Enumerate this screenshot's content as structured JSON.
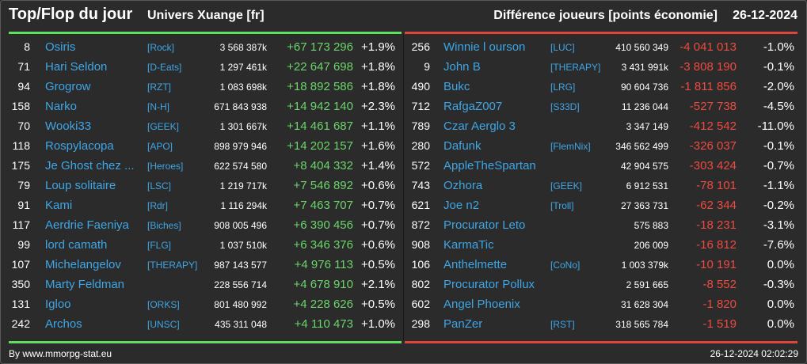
{
  "header": {
    "title": "Top/Flop du jour",
    "universe": "Univers Xuange [fr]",
    "metric": "Différence joueurs [points économie]",
    "date": "26-12-2024"
  },
  "colors": {
    "positive": "#6bd46b",
    "negative": "#ee4a40",
    "name": "#3ea6e6",
    "top_bar": "#5ee05e",
    "flop_bar": "#e0453c"
  },
  "top": [
    {
      "rank": "8",
      "name": "Osiris",
      "tag": "[Rock]",
      "score": "3 568 387k",
      "diff": "+67 173 296",
      "pct": "+1.9%"
    },
    {
      "rank": "71",
      "name": "Hari Seldon",
      "tag": "[D-Eats]",
      "score": "1 297 461k",
      "diff": "+22 647 698",
      "pct": "+1.8%"
    },
    {
      "rank": "94",
      "name": "Grogrow",
      "tag": "[RZT]",
      "score": "1 083 698k",
      "diff": "+18 892 586",
      "pct": "+1.8%"
    },
    {
      "rank": "158",
      "name": "Narko",
      "tag": "[N-H]",
      "score": "671 843 938",
      "diff": "+14 942 140",
      "pct": "+2.3%"
    },
    {
      "rank": "70",
      "name": "Wooki33",
      "tag": "[GEEK]",
      "score": "1 301 667k",
      "diff": "+14 461 687",
      "pct": "+1.1%"
    },
    {
      "rank": "118",
      "name": "Rospylacopa",
      "tag": "[APO]",
      "score": "898 979 946",
      "diff": "+14 202 157",
      "pct": "+1.6%"
    },
    {
      "rank": "175",
      "name": "Je Ghost chez ...",
      "tag": "[Heroes]",
      "score": "622 574 580",
      "diff": "+8 404 332",
      "pct": "+1.4%"
    },
    {
      "rank": "79",
      "name": "Loup solitaire",
      "tag": "[LSC]",
      "score": "1 219 717k",
      "diff": "+7 546 892",
      "pct": "+0.6%"
    },
    {
      "rank": "91",
      "name": "Kami",
      "tag": "[Rdr]",
      "score": "1 116 294k",
      "diff": "+7 463 707",
      "pct": "+0.7%"
    },
    {
      "rank": "117",
      "name": "Aerdrie Faeniya",
      "tag": "[Biches]",
      "score": "908 005 496",
      "diff": "+6 390 456",
      "pct": "+0.7%"
    },
    {
      "rank": "99",
      "name": "lord camath",
      "tag": "[FLG]",
      "score": "1 037 510k",
      "diff": "+6 346 376",
      "pct": "+0.6%"
    },
    {
      "rank": "107",
      "name": "Michelangelov",
      "tag": "[THERAPY]",
      "score": "987 143 577",
      "diff": "+4 976 113",
      "pct": "+0.5%"
    },
    {
      "rank": "350",
      "name": "Marty Feldman",
      "tag": "",
      "score": "228 556 714",
      "diff": "+4 678 910",
      "pct": "+2.1%"
    },
    {
      "rank": "131",
      "name": "Igloo",
      "tag": "[ORKS]",
      "score": "801 480 992",
      "diff": "+4 228 626",
      "pct": "+0.5%"
    },
    {
      "rank": "242",
      "name": "Archos",
      "tag": "[UNSC]",
      "score": "435 311 048",
      "diff": "+4 110 473",
      "pct": "+1.0%"
    }
  ],
  "flop": [
    {
      "rank": "256",
      "name": "Winnie l ourson",
      "tag": "[LUC]",
      "score": "410 560 349",
      "diff": "-4 041 013",
      "pct": "-1.0%"
    },
    {
      "rank": "9",
      "name": "John B",
      "tag": "[THERAPY]",
      "score": "3 431 991k",
      "diff": "-3 808 190",
      "pct": "-0.1%"
    },
    {
      "rank": "490",
      "name": "Bukc",
      "tag": "[LRG]",
      "score": "90 604 736",
      "diff": "-1 811 856",
      "pct": "-2.0%"
    },
    {
      "rank": "712",
      "name": "RafgaZ007",
      "tag": "[S33D]",
      "score": "11 236 044",
      "diff": "-527 738",
      "pct": "-4.5%"
    },
    {
      "rank": "789",
      "name": "Czar Aerglo 3",
      "tag": "",
      "score": "3 347 149",
      "diff": "-412 542",
      "pct": "-11.0%"
    },
    {
      "rank": "280",
      "name": "Dafunk",
      "tag": "[FlemNix]",
      "score": "346 562 499",
      "diff": "-326 037",
      "pct": "-0.1%"
    },
    {
      "rank": "572",
      "name": "AppleTheSpartan",
      "tag": "",
      "score": "42 904 575",
      "diff": "-303 424",
      "pct": "-0.7%"
    },
    {
      "rank": "743",
      "name": "Ozhora",
      "tag": "[GEEK]",
      "score": "6 912 531",
      "diff": "-78 101",
      "pct": "-1.1%"
    },
    {
      "rank": "621",
      "name": "Joe n2",
      "tag": "[Troll]",
      "score": "27 363 731",
      "diff": "-62 344",
      "pct": "-0.2%"
    },
    {
      "rank": "872",
      "name": "Procurator Leto",
      "tag": "",
      "score": "575 883",
      "diff": "-18 231",
      "pct": "-3.1%"
    },
    {
      "rank": "908",
      "name": "KarmaTic",
      "tag": "",
      "score": "206 009",
      "diff": "-16 812",
      "pct": "-7.6%"
    },
    {
      "rank": "106",
      "name": "Anthelmette",
      "tag": "[CoNo]",
      "score": "1 003 379k",
      "diff": "-10 191",
      "pct": "0.0%"
    },
    {
      "rank": "802",
      "name": "Procurator Pollux",
      "tag": "",
      "score": "2 591 665",
      "diff": "-8 552",
      "pct": "-0.3%"
    },
    {
      "rank": "602",
      "name": "Angel Phoenix",
      "tag": "",
      "score": "31 628 304",
      "diff": "-1 820",
      "pct": "0.0%"
    },
    {
      "rank": "298",
      "name": "PanZer",
      "tag": "[RST]",
      "score": "318 565 784",
      "diff": "-1 519",
      "pct": "0.0%"
    }
  ],
  "footer": {
    "source": "By www.mmorpg-stat.eu",
    "timestamp": "26-12-2024 02:02:29"
  }
}
